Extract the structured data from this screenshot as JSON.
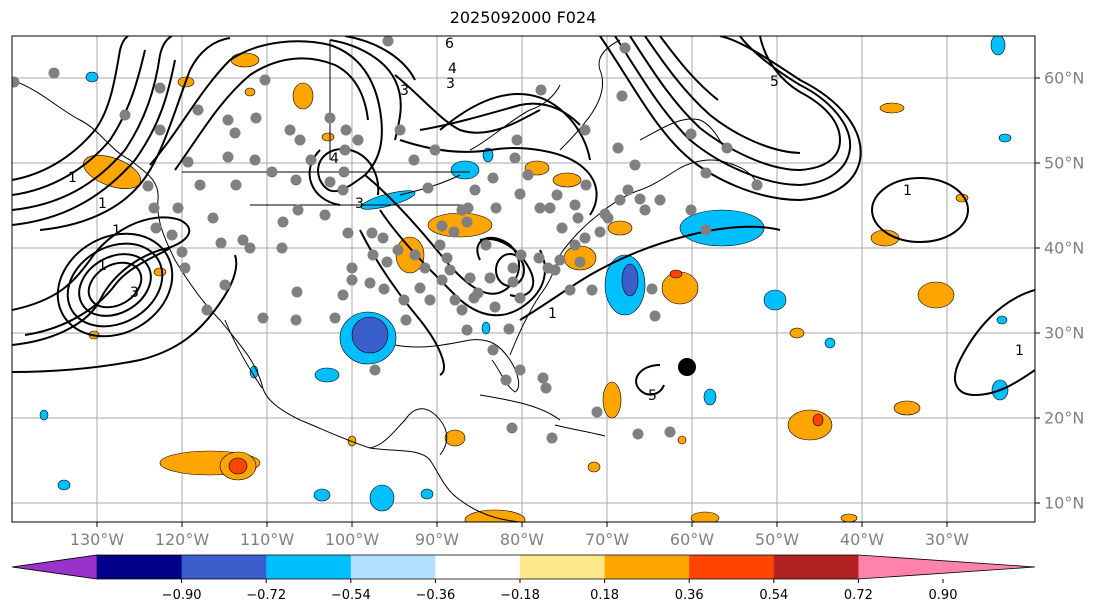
{
  "title": "2025092000 F024",
  "lon_labels": [
    "130°W",
    "120°W",
    "110°W",
    "100°W",
    "90°W",
    "80°W",
    "70°W",
    "60°W",
    "50°W",
    "40°W",
    "30°W"
  ],
  "lat_labels": [
    "60°N",
    "50°N",
    "40°N",
    "30°N",
    "20°N",
    "10°N"
  ],
  "colorbar": {
    "colors": [
      "#9932cc",
      "#00008b",
      "#3a5fcd",
      "#00bfff",
      "#b0e2ff",
      "#ffffff",
      "#ffe88a",
      "#ffa500",
      "#ff4500",
      "#b22222",
      "#ff82ab"
    ],
    "labels": [
      "−0.90",
      "−0.72",
      "−0.54",
      "−0.36",
      "−0.18",
      "0.18",
      "0.36",
      "0.54",
      "0.72",
      "0.90"
    ]
  },
  "contour_labels": [
    "1",
    "3",
    "5",
    "1",
    "3",
    "5",
    "4",
    "6",
    "1",
    "1",
    "1",
    "1",
    "1",
    "3",
    "4",
    "3"
  ],
  "storm_marker": "black-dot",
  "station_marker_color": "#808080"
}
